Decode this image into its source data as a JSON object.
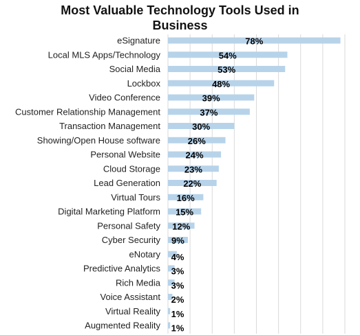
{
  "chart_data": {
    "type": "bar",
    "orientation": "horizontal",
    "title_lines": [
      "Most Valuable Technology Tools Used in",
      "Business"
    ],
    "xlim": [
      0,
      80
    ],
    "grid": true,
    "bar_color": "#b7d3ea",
    "grid_color": "#d9d9d9",
    "categories": [
      "eSignature",
      "Local MLS Apps/Technology",
      "Social Media",
      "Lockbox",
      "Video Conference",
      "Customer Relationship Management",
      "Transaction Management",
      "Showing/Open House software",
      "Personal Website",
      "Cloud Storage",
      "Lead Generation",
      "Virtual Tours",
      "Digital Marketing Platform",
      "Personal Safety",
      "Cyber Security",
      "eNotary",
      "Predictive Analytics",
      "Rich Media",
      "Voice Assistant",
      "Virtual Reality",
      "Augmented Reality"
    ],
    "values": [
      78,
      54,
      53,
      48,
      39,
      37,
      30,
      26,
      24,
      23,
      22,
      16,
      15,
      12,
      9,
      4,
      3,
      3,
      2,
      1,
      1
    ],
    "value_labels": [
      "78%",
      "54%",
      "53%",
      "48%",
      "39%",
      "37%",
      "30%",
      "26%",
      "24%",
      "23%",
      "22%",
      "16%",
      "15%",
      "12%",
      "9%",
      "4%",
      "3%",
      "3%",
      "2%",
      "1%",
      "1%"
    ]
  }
}
